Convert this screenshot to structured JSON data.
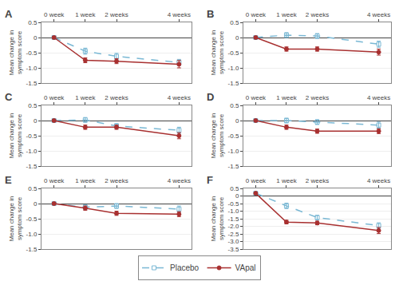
{
  "chart_data": [
    {
      "type": "line",
      "title": "A",
      "ylabel": "Mean change in\nsymptom score",
      "x": [
        0,
        1,
        2,
        4
      ],
      "xlim": [
        -0.4,
        4.4
      ],
      "xticks": [
        {
          "value": 0,
          "label": "0 week"
        },
        {
          "value": 1,
          "label": "1 week"
        },
        {
          "value": 2,
          "label": "2 weeks"
        },
        {
          "value": 4,
          "label": "4 weeks"
        }
      ],
      "ylim": [
        -1.5,
        0.5
      ],
      "yticks": [
        -1.5,
        {
          "value": -1.0,
          "label": "-1.0"
        },
        -0.5,
        0,
        0.5
      ],
      "grid": true,
      "legend": "bottom",
      "series": [
        {
          "name": "Placebo",
          "color": "#7ab8d4",
          "marker": "square-open",
          "line_style": "dashed",
          "values": [
            0.0,
            -0.45,
            -0.62,
            -0.82
          ],
          "errors": [
            0.05,
            0.1,
            0.1,
            0.1
          ]
        },
        {
          "name": "VApal",
          "color": "#a83030",
          "marker": "circle",
          "line_style": "solid",
          "values": [
            0.0,
            -0.75,
            -0.78,
            -0.88
          ],
          "errors": [
            0.04,
            0.08,
            0.08,
            0.12
          ]
        }
      ]
    },
    {
      "type": "line",
      "title": "B",
      "ylabel": "Mean change in\nsymptom score",
      "x": [
        0,
        1,
        2,
        4
      ],
      "xlim": [
        -0.4,
        4.4
      ],
      "xticks": [
        {
          "value": 0,
          "label": "0 week"
        },
        {
          "value": 1,
          "label": "1 week"
        },
        {
          "value": 2,
          "label": "2 weeks"
        },
        {
          "value": 4,
          "label": "4 weeks"
        }
      ],
      "ylim": [
        -1.5,
        0.5
      ],
      "yticks": [
        -1.5,
        {
          "value": -1.0,
          "label": "-1.0"
        },
        -0.5,
        0,
        0.5
      ],
      "grid": true,
      "legend": "bottom",
      "series": [
        {
          "name": "Placebo",
          "color": "#7ab8d4",
          "marker": "square-open",
          "line_style": "dashed",
          "values": [
            0.0,
            0.08,
            0.05,
            -0.22
          ],
          "errors": [
            0.04,
            0.08,
            0.08,
            0.1
          ]
        },
        {
          "name": "VApal",
          "color": "#a83030",
          "marker": "circle",
          "line_style": "solid",
          "values": [
            0.0,
            -0.38,
            -0.38,
            -0.48
          ],
          "errors": [
            0.04,
            0.07,
            0.07,
            0.1
          ]
        }
      ]
    },
    {
      "type": "line",
      "title": "C",
      "ylabel": "Mean change in\nsymptom score",
      "x": [
        0,
        1,
        2,
        4
      ],
      "xlim": [
        -0.4,
        4.4
      ],
      "xticks": [
        {
          "value": 0,
          "label": "0 week"
        },
        {
          "value": 1,
          "label": "1 week"
        },
        {
          "value": 2,
          "label": "2 weeks"
        },
        {
          "value": 4,
          "label": "4 weeks"
        }
      ],
      "ylim": [
        -1.5,
        0.5
      ],
      "yticks": [
        -1.5,
        {
          "value": -1.0,
          "label": "-1.0"
        },
        -0.5,
        0,
        0.5
      ],
      "grid": true,
      "legend": "bottom",
      "series": [
        {
          "name": "Placebo",
          "color": "#7ab8d4",
          "marker": "square-open",
          "line_style": "dashed",
          "values": [
            0.0,
            0.02,
            -0.18,
            -0.32
          ],
          "errors": [
            0.04,
            0.08,
            0.08,
            0.1
          ]
        },
        {
          "name": "VApal",
          "color": "#a83030",
          "marker": "circle",
          "line_style": "solid",
          "values": [
            0.0,
            -0.22,
            -0.22,
            -0.5
          ],
          "errors": [
            0.04,
            0.07,
            0.07,
            0.1
          ]
        }
      ]
    },
    {
      "type": "line",
      "title": "D",
      "ylabel": "Mean change in\nsymptom score",
      "x": [
        0,
        1,
        2,
        4
      ],
      "xlim": [
        -0.4,
        4.4
      ],
      "xticks": [
        {
          "value": 0,
          "label": "0 week"
        },
        {
          "value": 1,
          "label": "1 week"
        },
        {
          "value": 2,
          "label": "2 weeks"
        },
        {
          "value": 4,
          "label": "4 weeks"
        }
      ],
      "ylim": [
        -1.5,
        0.5
      ],
      "yticks": [
        -1.5,
        {
          "value": -1.0,
          "label": "-1.0"
        },
        -0.5,
        0,
        0.5
      ],
      "grid": true,
      "legend": "bottom",
      "series": [
        {
          "name": "Placebo",
          "color": "#7ab8d4",
          "marker": "square-open",
          "line_style": "dashed",
          "values": [
            0.0,
            0.0,
            -0.05,
            -0.15
          ],
          "errors": [
            0.04,
            0.08,
            0.08,
            0.1
          ]
        },
        {
          "name": "VApal",
          "color": "#a83030",
          "marker": "circle",
          "line_style": "solid",
          "values": [
            0.0,
            -0.22,
            -0.35,
            -0.35
          ],
          "errors": [
            0.04,
            0.07,
            0.07,
            0.08
          ]
        }
      ]
    },
    {
      "type": "line",
      "title": "E",
      "ylabel": "Mean change in\nsymptom score",
      "x": [
        0,
        1,
        2,
        4
      ],
      "xlim": [
        -0.4,
        4.4
      ],
      "xticks": [
        {
          "value": 0,
          "label": "0 week"
        },
        {
          "value": 1,
          "label": "1 week"
        },
        {
          "value": 2,
          "label": "2 weeks"
        },
        {
          "value": 4,
          "label": "4 weeks"
        }
      ],
      "ylim": [
        -1.5,
        0.5
      ],
      "yticks": [
        -1.5,
        {
          "value": -1.0,
          "label": "-1.0"
        },
        -0.5,
        0,
        0.5
      ],
      "grid": true,
      "legend": "bottom",
      "series": [
        {
          "name": "Placebo",
          "color": "#7ab8d4",
          "marker": "square-open",
          "line_style": "dashed",
          "values": [
            0.0,
            -0.12,
            -0.08,
            -0.18
          ],
          "errors": [
            0.04,
            0.08,
            0.08,
            0.1
          ]
        },
        {
          "name": "VApal",
          "color": "#a83030",
          "marker": "circle",
          "line_style": "solid",
          "values": [
            0.0,
            -0.15,
            -0.32,
            -0.35
          ],
          "errors": [
            0.04,
            0.07,
            0.07,
            0.08
          ]
        }
      ]
    },
    {
      "type": "line",
      "title": "F",
      "ylabel": "Mean change in\nsymptom score",
      "x": [
        0,
        1,
        2,
        4
      ],
      "xlim": [
        -0.4,
        4.4
      ],
      "xticks": [
        {
          "value": 0,
          "label": "0 week"
        },
        {
          "value": 1,
          "label": "1 week"
        },
        {
          "value": 2,
          "label": "2 weeks"
        },
        {
          "value": 4,
          "label": "4 weeks"
        }
      ],
      "ylim": [
        -3.5,
        0.5
      ],
      "yticks": [
        -3.5,
        {
          "value": -3.0,
          "label": "-3.0"
        },
        -2.5,
        {
          "value": -2.0,
          "label": "-2.0"
        },
        -1.5,
        {
          "value": -1.0,
          "label": "-1.0"
        },
        -0.5,
        0,
        0.5
      ],
      "grid": true,
      "legend": "bottom",
      "series": [
        {
          "name": "Placebo",
          "color": "#7ab8d4",
          "marker": "square-open",
          "line_style": "dashed",
          "values": [
            0.18,
            -0.65,
            -1.42,
            -1.95
          ],
          "errors": [
            0.08,
            0.18,
            0.15,
            0.18
          ]
        },
        {
          "name": "VApal",
          "color": "#a83030",
          "marker": "circle",
          "line_style": "solid",
          "values": [
            0.18,
            -1.72,
            -1.78,
            -2.28
          ],
          "errors": [
            0.08,
            0.12,
            0.12,
            0.2
          ]
        }
      ]
    }
  ]
}
